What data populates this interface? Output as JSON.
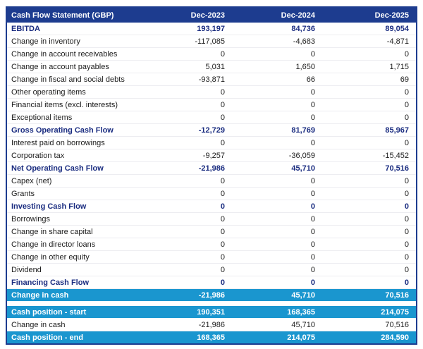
{
  "table": {
    "title": "Cash Flow Statement (GBP)",
    "columns": [
      "Dec-2023",
      "Dec-2024",
      "Dec-2025"
    ],
    "colors": {
      "header_bg": "#1d3c8f",
      "header_text": "#ffffff",
      "subtotal_text": "#1a2c80",
      "highlight_bg": "#1a96cf",
      "highlight_text": "#ffffff",
      "body_text": "#1c1c1c",
      "border": "#1d3c8f"
    },
    "rows": [
      {
        "label": "EBITDA",
        "values": [
          "193,197",
          "84,736",
          "89,054"
        ],
        "style": "subtotal"
      },
      {
        "label": "Change in inventory",
        "values": [
          "-117,085",
          "-4,683",
          "-4,871"
        ],
        "style": "normal"
      },
      {
        "label": "Change in account receivables",
        "values": [
          "0",
          "0",
          "0"
        ],
        "style": "normal"
      },
      {
        "label": "Change in account payables",
        "values": [
          "5,031",
          "1,650",
          "1,715"
        ],
        "style": "normal"
      },
      {
        "label": "Change in fiscal and social debts",
        "values": [
          "-93,871",
          "66",
          "69"
        ],
        "style": "normal"
      },
      {
        "label": "Other operating items",
        "values": [
          "0",
          "0",
          "0"
        ],
        "style": "normal"
      },
      {
        "label": "Financial items (excl. interests)",
        "values": [
          "0",
          "0",
          "0"
        ],
        "style": "normal"
      },
      {
        "label": "Exceptional items",
        "values": [
          "0",
          "0",
          "0"
        ],
        "style": "normal"
      },
      {
        "label": "Gross Operating Cash Flow",
        "values": [
          "-12,729",
          "81,769",
          "85,967"
        ],
        "style": "subtotal"
      },
      {
        "label": "Interest paid on borrowings",
        "values": [
          "0",
          "0",
          "0"
        ],
        "style": "normal"
      },
      {
        "label": "Corporation tax",
        "values": [
          "-9,257",
          "-36,059",
          "-15,452"
        ],
        "style": "normal"
      },
      {
        "label": "Net Operating Cash Flow",
        "values": [
          "-21,986",
          "45,710",
          "70,516"
        ],
        "style": "subtotal"
      },
      {
        "label": "Capex (net)",
        "values": [
          "0",
          "0",
          "0"
        ],
        "style": "normal"
      },
      {
        "label": "Grants",
        "values": [
          "0",
          "0",
          "0"
        ],
        "style": "normal"
      },
      {
        "label": "Investing Cash Flow",
        "values": [
          "0",
          "0",
          "0"
        ],
        "style": "subtotal"
      },
      {
        "label": "Borrowings",
        "values": [
          "0",
          "0",
          "0"
        ],
        "style": "normal"
      },
      {
        "label": "Change in share capital",
        "values": [
          "0",
          "0",
          "0"
        ],
        "style": "normal"
      },
      {
        "label": "Change in director loans",
        "values": [
          "0",
          "0",
          "0"
        ],
        "style": "normal"
      },
      {
        "label": "Change in other equity",
        "values": [
          "0",
          "0",
          "0"
        ],
        "style": "normal"
      },
      {
        "label": "Dividend",
        "values": [
          "0",
          "0",
          "0"
        ],
        "style": "normal"
      },
      {
        "label": "Financing Cash Flow",
        "values": [
          "0",
          "0",
          "0"
        ],
        "style": "subtotal"
      },
      {
        "label": "Change in cash",
        "values": [
          "-21,986",
          "45,710",
          "70,516"
        ],
        "style": "highlight"
      },
      {
        "label": "",
        "values": [
          "",
          "",
          ""
        ],
        "style": "spacer"
      },
      {
        "label": "Cash position - start",
        "values": [
          "190,351",
          "168,365",
          "214,075"
        ],
        "style": "highlight"
      },
      {
        "label": "Change in cash",
        "values": [
          "-21,986",
          "45,710",
          "70,516"
        ],
        "style": "normal"
      },
      {
        "label": "Cash position - end",
        "values": [
          "168,365",
          "214,075",
          "284,590"
        ],
        "style": "highlight"
      }
    ]
  }
}
